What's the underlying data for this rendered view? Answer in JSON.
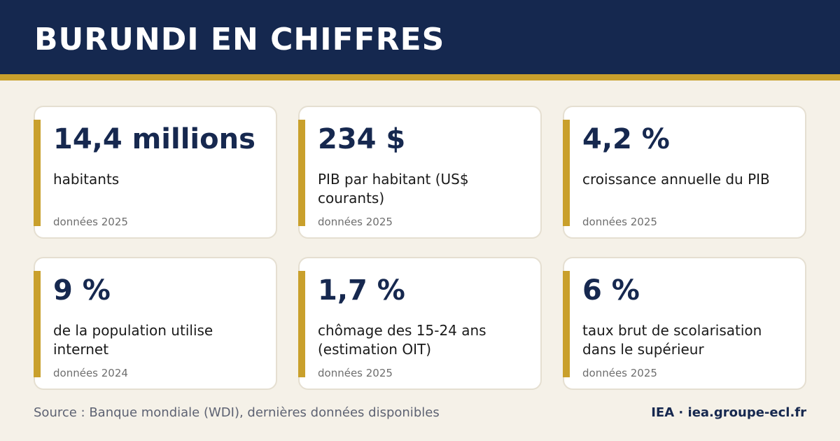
{
  "header": {
    "title": "BURUNDI EN CHIFFRES"
  },
  "colors": {
    "header_bg": "#15284f",
    "accent": "#c9a02c",
    "background": "#f5f1e8"
  },
  "cards": [
    {
      "value": "14,4 millions",
      "label": "habitants",
      "note": "données 2025"
    },
    {
      "value": "234 $",
      "label": "PIB par habitant (US$ courants)",
      "note": "données 2025"
    },
    {
      "value": "4,2 %",
      "label": "croissance annuelle du PIB",
      "note": "données 2025"
    },
    {
      "value": "9 %",
      "label": "de la population utilise internet",
      "note": "données 2024"
    },
    {
      "value": "1,7 %",
      "label": "chômage des 15-24 ans (estimation OIT)",
      "note": "données 2025"
    },
    {
      "value": "6 %",
      "label": "taux brut de scolarisation dans le supérieur",
      "note": "données 2025"
    }
  ],
  "footer": {
    "source": "Source : Banque mondiale (WDI), dernières données disponibles",
    "brand": "IEA · iea.groupe-ecl.fr"
  }
}
